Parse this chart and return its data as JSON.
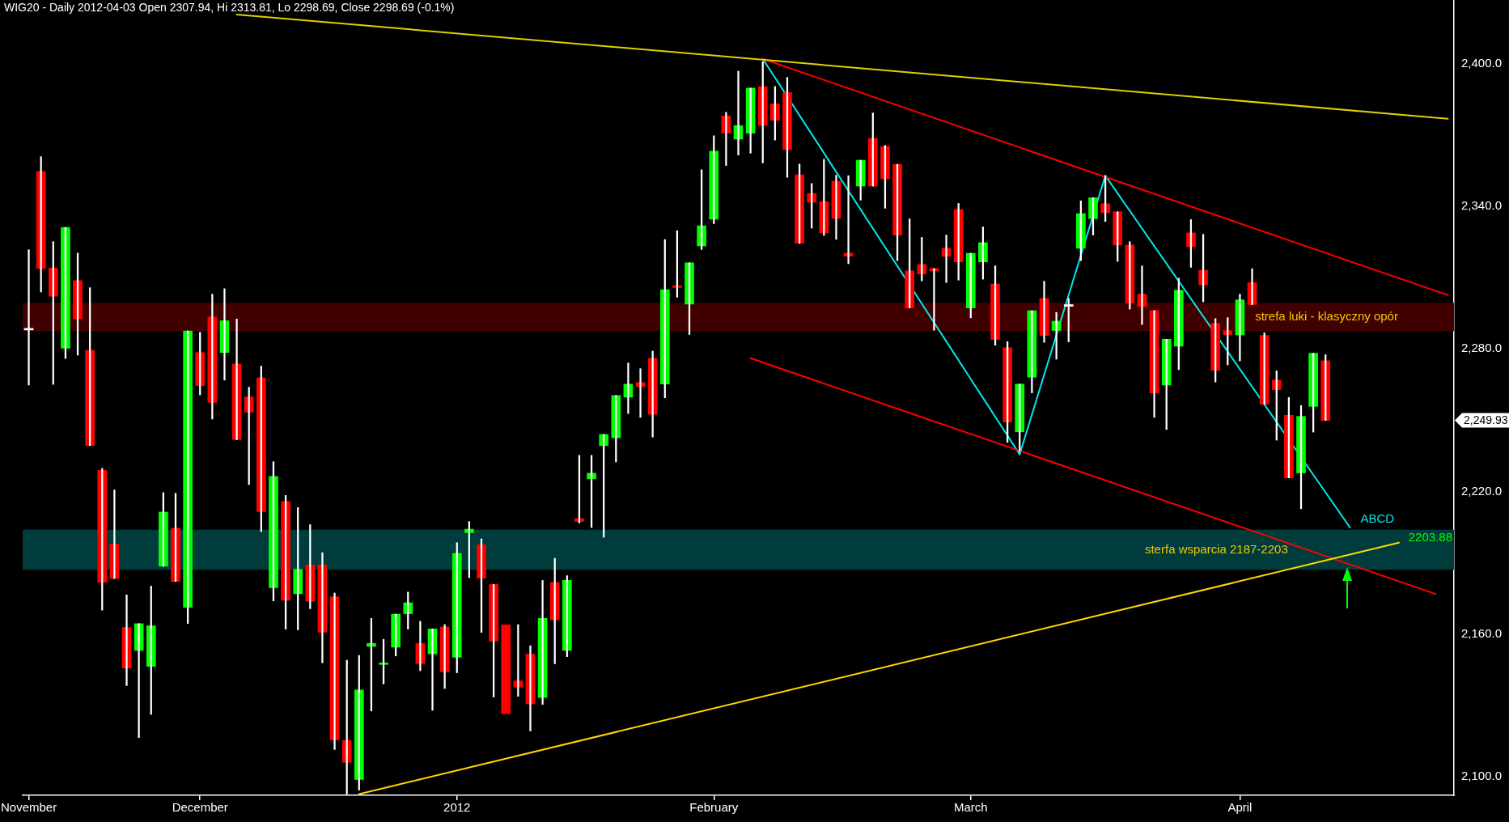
{
  "chart_data": {
    "type": "candlestick",
    "title": "WIG20 - Daily 2012-04-03 Open 2307.94, Hi 2313.81, Lo 2298.69, Close 2298.69 (-0.1%)",
    "categories": [
      "November",
      null,
      null,
      null,
      null,
      null,
      null,
      null,
      null,
      null,
      null,
      null,
      null,
      null,
      "December",
      null,
      null,
      null,
      null,
      null,
      null,
      null,
      null,
      null,
      null,
      null,
      null,
      null,
      null,
      null,
      null,
      null,
      null,
      null,
      null,
      "2012",
      null,
      null,
      null,
      null,
      null,
      null,
      null,
      null,
      null,
      null,
      null,
      null,
      null,
      null,
      null,
      null,
      null,
      null,
      null,
      null,
      "February",
      null,
      null,
      null,
      null,
      null,
      null,
      null,
      null,
      null,
      null,
      null,
      null,
      null,
      null,
      null,
      null,
      null,
      null,
      null,
      null,
      "March",
      null,
      null,
      null,
      null,
      null,
      null,
      null,
      null,
      null,
      null,
      null,
      null,
      null,
      null,
      null,
      null,
      null,
      null,
      null,
      null,
      null,
      "April",
      null,
      null,
      null,
      null,
      null,
      null,
      null,
      null,
      null,
      null,
      null,
      null,
      null,
      null,
      null,
      null,
      null
    ],
    "ohlc": [
      [
        2288,
        2321.8,
        2264.8,
        2288
      ],
      [
        2354.8,
        2361,
        2304,
        2313.9
      ],
      [
        2314.1,
        2325.2,
        2265.1,
        2302.2
      ],
      [
        2280.3,
        2331.2,
        2276,
        2331.2
      ],
      [
        2308.8,
        2320.4,
        2277.4,
        2292.7
      ],
      [
        2279.4,
        2305.8,
        2239.3,
        2239.3
      ],
      [
        2228.9,
        2229.7,
        2170,
        2181.7
      ],
      [
        2197.8,
        2220.6,
        2183.3,
        2183.3
      ],
      [
        2162.7,
        2176.4,
        2138.2,
        2145.6
      ],
      [
        2153,
        2164.3,
        2116.3,
        2164.3
      ],
      [
        2146.3,
        2180.1,
        2126.1,
        2163.4
      ],
      [
        2188.5,
        2219.5,
        2188.5,
        2211.3
      ],
      [
        2204.5,
        2219.2,
        2182.1,
        2182.1
      ],
      [
        2171.2,
        2287.6,
        2164.4,
        2287.6
      ],
      [
        2278.5,
        2287,
        2260.7,
        2264.6
      ],
      [
        2293.5,
        2303.1,
        2250.5,
        2257.5
      ],
      [
        2278.5,
        2305.4,
        2266.9,
        2291.9
      ],
      [
        2273.7,
        2292.6,
        2241.8,
        2241.8
      ],
      [
        2259.8,
        2263.9,
        2222.9,
        2253.4
      ],
      [
        2267.8,
        2272.8,
        2203.1,
        2211.5
      ],
      [
        2179.4,
        2232.5,
        2173.9,
        2226.3
      ],
      [
        2215.8,
        2218.3,
        2162,
        2174.2
      ],
      [
        2176.9,
        2213.2,
        2161.7,
        2187.2
      ],
      [
        2189,
        2206,
        2170.6,
        2173.7
      ],
      [
        2189,
        2194.2,
        2147.8,
        2160.7
      ],
      [
        2175.6,
        2177.2,
        2111.3,
        2115.4
      ],
      [
        2115.1,
        2148.9,
        2092.5,
        2105.9
      ],
      [
        2098.7,
        2150.9,
        2094.2,
        2136.4
      ],
      [
        2154.7,
        2166.5,
        2127.5,
        2156
      ],
      [
        2147.1,
        2157.7,
        2138.9,
        2147.8
      ],
      [
        2154.4,
        2168.3,
        2150.7,
        2168.3
      ],
      [
        2168.5,
        2177.6,
        2162,
        2173.1
      ],
      [
        2156,
        2165.3,
        2144.5,
        2147.5
      ],
      [
        2151.6,
        2162.1,
        2127.8,
        2162.1
      ],
      [
        2162.9,
        2163.9,
        2137,
        2144
      ],
      [
        2150.1,
        2198.4,
        2143.6,
        2193.9
      ],
      [
        2202.6,
        2207.3,
        2183.7,
        2204.1
      ],
      [
        2197.5,
        2200,
        2160.6,
        2183.5
      ],
      [
        2180.8,
        2180.8,
        2133.4,
        2156.9
      ],
      [
        2163.8,
        2163.8,
        2126.4,
        2126.4
      ],
      [
        2140.2,
        2163.9,
        2133.7,
        2137.6
      ],
      [
        2151.5,
        2155,
        2119.1,
        2130.5
      ],
      [
        2133.2,
        2182.5,
        2130.3,
        2166.5
      ],
      [
        2181.7,
        2191.8,
        2147.4,
        2165.9
      ],
      [
        2153,
        2184.5,
        2150.4,
        2182.5
      ],
      [
        2208.6,
        2235.2,
        2206.7,
        2207.3
      ],
      [
        2225.3,
        2235.2,
        2204.8,
        2227.7
      ],
      [
        2239.3,
        2244,
        2200.7,
        2244
      ],
      [
        2242.6,
        2260.4,
        2232.4,
        2260.4
      ],
      [
        2259.7,
        2274.1,
        2252.8,
        2265.2
      ],
      [
        2265.9,
        2271.7,
        2251.2,
        2264.1
      ],
      [
        2276.1,
        2279.1,
        2242.9,
        2252.5
      ],
      [
        2265.2,
        2326.1,
        2259.4,
        2305
      ],
      [
        2306.7,
        2329.8,
        2301.8,
        2305.9
      ],
      [
        2298.9,
        2316.3,
        2286.1,
        2316.3
      ],
      [
        2323.4,
        2355.5,
        2321.9,
        2331.9
      ],
      [
        2334.7,
        2369.8,
        2332.8,
        2363.3
      ],
      [
        2378.2,
        2379.7,
        2357.3,
        2370.9
      ],
      [
        2368.4,
        2397,
        2361.7,
        2374.1
      ],
      [
        2370.9,
        2389.9,
        2362.5,
        2389.9
      ],
      [
        2390.5,
        2401,
        2358.4,
        2374.2
      ],
      [
        2383.3,
        2390.6,
        2368,
        2376.3
      ],
      [
        2388,
        2394.4,
        2352.3,
        2364
      ],
      [
        2353.4,
        2357.9,
        2324.5,
        2324.5
      ],
      [
        2345.5,
        2349.7,
        2330.9,
        2341.8
      ],
      [
        2342.1,
        2359.9,
        2327.8,
        2328.9
      ],
      [
        2350.7,
        2353.2,
        2326.2,
        2335
      ],
      [
        2320.4,
        2353,
        2315.9,
        2319.1
      ],
      [
        2348.6,
        2359.5,
        2342.7,
        2359.5
      ],
      [
        2368.7,
        2379.4,
        2348.6,
        2348.6
      ],
      [
        2365.3,
        2365.7,
        2339.3,
        2351.7
      ],
      [
        2357.8,
        2357.8,
        2317.2,
        2327.9
      ],
      [
        2312.9,
        2334.8,
        2297.3,
        2297.3
      ],
      [
        2315.6,
        2327,
        2308.7,
        2311.6
      ],
      [
        2313.9,
        2313.9,
        2287.9,
        2312.9
      ],
      [
        2322.4,
        2328,
        2308,
        2319
      ],
      [
        2338.8,
        2341.3,
        2309,
        2316.7
      ],
      [
        2297.3,
        2320.3,
        2293.1,
        2320.3
      ],
      [
        2316.7,
        2331.4,
        2309.4,
        2324.8
      ],
      [
        2307.4,
        2315,
        2281.6,
        2284
      ],
      [
        2280.5,
        2283.1,
        2240.7,
        2249.2
      ],
      [
        2245.1,
        2265.2,
        2236.8,
        2265.2
      ],
      [
        2268.1,
        2296.1,
        2261.5,
        2296.1
      ],
      [
        2301.3,
        2308.5,
        2282.8,
        2285.7
      ],
      [
        2287.8,
        2295.4,
        2275.7,
        2291.7
      ],
      [
        2298,
        2301.3,
        2283,
        2298
      ],
      [
        2322.4,
        2342.4,
        2317.2,
        2337
      ],
      [
        2334.9,
        2343.7,
        2328,
        2343.7
      ],
      [
        2341.2,
        2353,
        2333.7,
        2337.4
      ],
      [
        2337.8,
        2337.8,
        2316.9,
        2323.8
      ],
      [
        2323.8,
        2325.2,
        2296.8,
        2299.3
      ],
      [
        2303.1,
        2315,
        2290.3,
        2297.9
      ],
      [
        2296.2,
        2296.2,
        2251.2,
        2261.5
      ],
      [
        2264.8,
        2284.1,
        2246.1,
        2284.1
      ],
      [
        2281.2,
        2309.8,
        2271.3,
        2304.7
      ],
      [
        2328.9,
        2334.5,
        2314.4,
        2323.1
      ],
      [
        2313.2,
        2328.3,
        2299.9,
        2307
      ],
      [
        2290.8,
        2292.8,
        2266.1,
        2271
      ],
      [
        2287.7,
        2293.2,
        2273.3,
        2286
      ],
      [
        2285.9,
        2303.1,
        2275,
        2300.7
      ],
      [
        2307.94,
        2313.81,
        2298.69,
        2298.69
      ],
      [
        2285.7,
        2286.8,
        2256.7,
        2256.7
      ],
      [
        2266.9,
        2270.8,
        2241.6,
        2262.9
      ],
      [
        2252.1,
        2259.6,
        2225.7,
        2225.7
      ],
      [
        2227.8,
        2256.2,
        2212.7,
        2251.6
      ],
      [
        2255.8,
        2278.2,
        2245,
        2278.2
      ],
      [
        2275.1,
        2277.6,
        2249.93,
        2249.93
      ],
      null,
      null,
      null,
      null,
      null,
      null,
      null,
      null,
      null,
      null
    ],
    "colors": [
      "#ffffff",
      "#ff0000",
      "#ff0000",
      "#00ff00",
      "#ff0000",
      "#ff0000",
      "#ff0000",
      "#ff0000",
      "#ff0000",
      "#00ff00",
      "#00ff00",
      "#00ff00",
      "#ff0000",
      "#00ff00",
      "#ff0000",
      "#ff0000",
      "#00ff00",
      "#ff0000",
      "#ff0000",
      "#ff0000",
      "#00ff00",
      "#ff0000",
      "#00ff00",
      "#ff0000",
      "#ff0000",
      "#ff0000",
      "#ff0000",
      "#00ff00",
      "#00ff00",
      "#00ff00",
      "#00ff00",
      "#00ff00",
      "#ff0000",
      "#00ff00",
      "#ff0000",
      "#00ff00",
      "#00ff00",
      "#ff0000",
      "#ff0000",
      "#ff0000",
      "#ff0000",
      "#ff0000",
      "#00ff00",
      "#ff0000",
      "#00ff00",
      "#ff0000",
      "#00ff00",
      "#00ff00",
      "#00ff00",
      "#00ff00",
      "#ff0000",
      "#ff0000",
      "#00ff00",
      "#ff0000",
      "#00ff00",
      "#00ff00",
      "#00ff00",
      "#ff0000",
      "#00ff00",
      "#00ff00",
      "#ff0000",
      "#ff0000",
      "#ff0000",
      "#ff0000",
      "#ff0000",
      "#ff0000",
      "#ff0000",
      "#ff0000",
      "#00ff00",
      "#ff0000",
      "#ff0000",
      "#ff0000",
      "#ff0000",
      "#ff0000",
      "#ff0000",
      "#ff0000",
      "#ff0000",
      "#00ff00",
      "#00ff00",
      "#ff0000",
      "#ff0000",
      "#00ff00",
      "#00ff00",
      "#ff0000",
      "#00ff00",
      "#ffffff",
      "#00ff00",
      "#00ff00",
      "#ff0000",
      "#ff0000",
      "#ff0000",
      "#ff0000",
      "#ff0000",
      "#00ff00",
      "#00ff00",
      "#ff0000",
      "#ff0000",
      "#ff0000",
      "#ff0000",
      "#00ff00",
      "#ff0000",
      "#ff0000",
      "#ff0000",
      "#ff0000",
      "#00ff00",
      "#00ff00",
      "#ff0000",
      null,
      null,
      null,
      null,
      null,
      null,
      null,
      null,
      null,
      null
    ],
    "series": [
      {
        "type": "line",
        "color": "#e0d000",
        "values": [
          null,
          null,
          null,
          null,
          null,
          null,
          null,
          null,
          null,
          null,
          null,
          null,
          null,
          null,
          null,
          null,
          null,
          2420.9,
          null,
          null,
          null,
          null,
          null,
          null,
          null,
          null,
          null,
          null,
          null,
          null,
          null,
          null,
          null,
          null,
          null,
          null,
          null,
          null,
          null,
          null,
          null,
          null,
          null,
          null,
          null,
          null,
          null,
          null,
          null,
          null,
          null,
          null,
          null,
          null,
          null,
          null,
          null,
          null,
          null,
          null,
          null,
          null,
          null,
          null,
          null,
          null,
          null,
          null,
          null,
          null,
          null,
          null,
          null,
          null,
          null,
          null,
          null,
          null,
          null,
          null,
          null,
          null,
          null,
          null,
          null,
          null,
          null,
          null,
          null,
          null,
          null,
          null,
          null,
          null,
          null,
          null,
          null,
          null,
          null,
          null,
          null,
          null,
          null,
          null,
          null,
          null,
          null,
          null,
          null,
          null,
          null,
          null,
          null,
          null,
          null,
          null,
          2377
        ]
      },
      {
        "type": "line",
        "color": "#ffd800",
        "values": [
          null,
          null,
          null,
          null,
          null,
          null,
          null,
          null,
          null,
          null,
          null,
          null,
          null,
          null,
          null,
          null,
          null,
          null,
          null,
          null,
          null,
          null,
          null,
          null,
          null,
          null,
          null,
          2092.5,
          null,
          null,
          null,
          null,
          null,
          null,
          null,
          null,
          null,
          null,
          null,
          null,
          null,
          null,
          null,
          null,
          null,
          null,
          null,
          null,
          null,
          null,
          null,
          null,
          null,
          null,
          null,
          null,
          null,
          null,
          null,
          null,
          null,
          null,
          null,
          null,
          null,
          null,
          null,
          null,
          null,
          null,
          null,
          null,
          null,
          null,
          null,
          null,
          null,
          null,
          null,
          null,
          null,
          null,
          null,
          null,
          null,
          null,
          null,
          null,
          null,
          null,
          null,
          null,
          null,
          null,
          null,
          null,
          null,
          null,
          null,
          null,
          null,
          null,
          null,
          null,
          null,
          null,
          null,
          null,
          null,
          null,
          null,
          null,
          2198.4,
          null,
          null,
          null,
          null
        ]
      },
      {
        "type": "line",
        "color": "#ff0000",
        "values": [
          null,
          null,
          null,
          null,
          null,
          null,
          null,
          null,
          null,
          null,
          null,
          null,
          null,
          null,
          null,
          null,
          null,
          null,
          null,
          null,
          null,
          null,
          null,
          null,
          null,
          null,
          null,
          null,
          null,
          null,
          null,
          null,
          null,
          null,
          null,
          null,
          null,
          null,
          null,
          null,
          null,
          null,
          null,
          null,
          null,
          null,
          null,
          null,
          null,
          null,
          null,
          null,
          null,
          null,
          null,
          null,
          null,
          null,
          null,
          null,
          2402.2,
          null,
          null,
          null,
          null,
          null,
          null,
          null,
          null,
          null,
          null,
          null,
          null,
          null,
          null,
          null,
          null,
          null,
          null,
          null,
          null,
          null,
          null,
          null,
          null,
          null,
          null,
          null,
          null,
          null,
          null,
          null,
          null,
          null,
          null,
          null,
          null,
          null,
          null,
          null,
          null,
          null,
          null,
          null,
          null,
          null,
          null,
          null,
          null,
          null,
          null,
          null,
          null,
          null,
          null,
          null,
          2302.7
        ]
      },
      {
        "type": "line",
        "color": "#ff0000",
        "values": [
          null,
          null,
          null,
          null,
          null,
          null,
          null,
          null,
          null,
          null,
          null,
          null,
          null,
          null,
          null,
          null,
          null,
          null,
          null,
          null,
          null,
          null,
          null,
          null,
          null,
          null,
          null,
          null,
          null,
          null,
          null,
          null,
          null,
          null,
          null,
          null,
          null,
          null,
          null,
          null,
          null,
          null,
          null,
          null,
          null,
          null,
          null,
          null,
          null,
          null,
          null,
          null,
          null,
          null,
          null,
          null,
          null,
          null,
          null,
          2276.1,
          null,
          null,
          null,
          null,
          null,
          null,
          null,
          null,
          null,
          null,
          null,
          null,
          null,
          null,
          null,
          null,
          null,
          null,
          null,
          null,
          null,
          null,
          null,
          null,
          null,
          null,
          null,
          null,
          null,
          null,
          null,
          null,
          null,
          null,
          null,
          null,
          null,
          null,
          null,
          null,
          null,
          null,
          null,
          null,
          null,
          null,
          null,
          null,
          null,
          null,
          null,
          null,
          null,
          null,
          null,
          2176.8,
          null
        ]
      },
      {
        "type": "line",
        "name": "ABCD",
        "color": "#00e8f0",
        "values": [
          null,
          null,
          null,
          null,
          null,
          null,
          null,
          null,
          null,
          null,
          null,
          null,
          null,
          null,
          null,
          null,
          null,
          null,
          null,
          null,
          null,
          null,
          null,
          null,
          null,
          null,
          null,
          null,
          null,
          null,
          null,
          null,
          null,
          null,
          null,
          null,
          null,
          null,
          null,
          null,
          null,
          null,
          null,
          null,
          null,
          null,
          null,
          null,
          null,
          null,
          null,
          null,
          null,
          null,
          null,
          null,
          null,
          null,
          null,
          null,
          2402.2,
          null,
          null,
          null,
          null,
          null,
          null,
          null,
          null,
          null,
          null,
          null,
          null,
          null,
          null,
          null,
          null,
          null,
          null,
          null,
          null,
          2235.6,
          null,
          null,
          null,
          null,
          null,
          null,
          2353,
          null,
          null,
          null,
          null,
          null,
          null,
          null,
          null,
          null,
          null,
          null,
          null,
          null,
          null,
          null,
          null,
          null,
          null,
          null,
          2204.8,
          null,
          null,
          null,
          null,
          null,
          null,
          null,
          null
        ]
      }
    ],
    "bands": [
      {
        "axis": "y",
        "from": 2187,
        "to": 2203.88,
        "label": "sterfa wsparcia 2187-2203",
        "color": "#003c3c"
      },
      {
        "axis": "y",
        "from": 2287.5,
        "to": 2299.5,
        "label": "strefa luki - klasyczny opór",
        "color": "#400000"
      }
    ],
    "annotations": [
      {
        "text": "2203.88",
        "y": 2203.88
      },
      "2,249.93"
    ],
    "ylim": [
      2092,
      2427
    ],
    "yticks": [
      {
        "value": 2100,
        "label": "2,100.0"
      },
      {
        "value": 2160,
        "label": "2,160.0"
      },
      {
        "value": 2220,
        "label": "2,220.0"
      },
      {
        "value": 2280,
        "label": "2,280.0"
      },
      {
        "value": 2340,
        "label": "2,340.0"
      },
      {
        "value": 2400,
        "label": "2,400.0"
      }
    ]
  }
}
